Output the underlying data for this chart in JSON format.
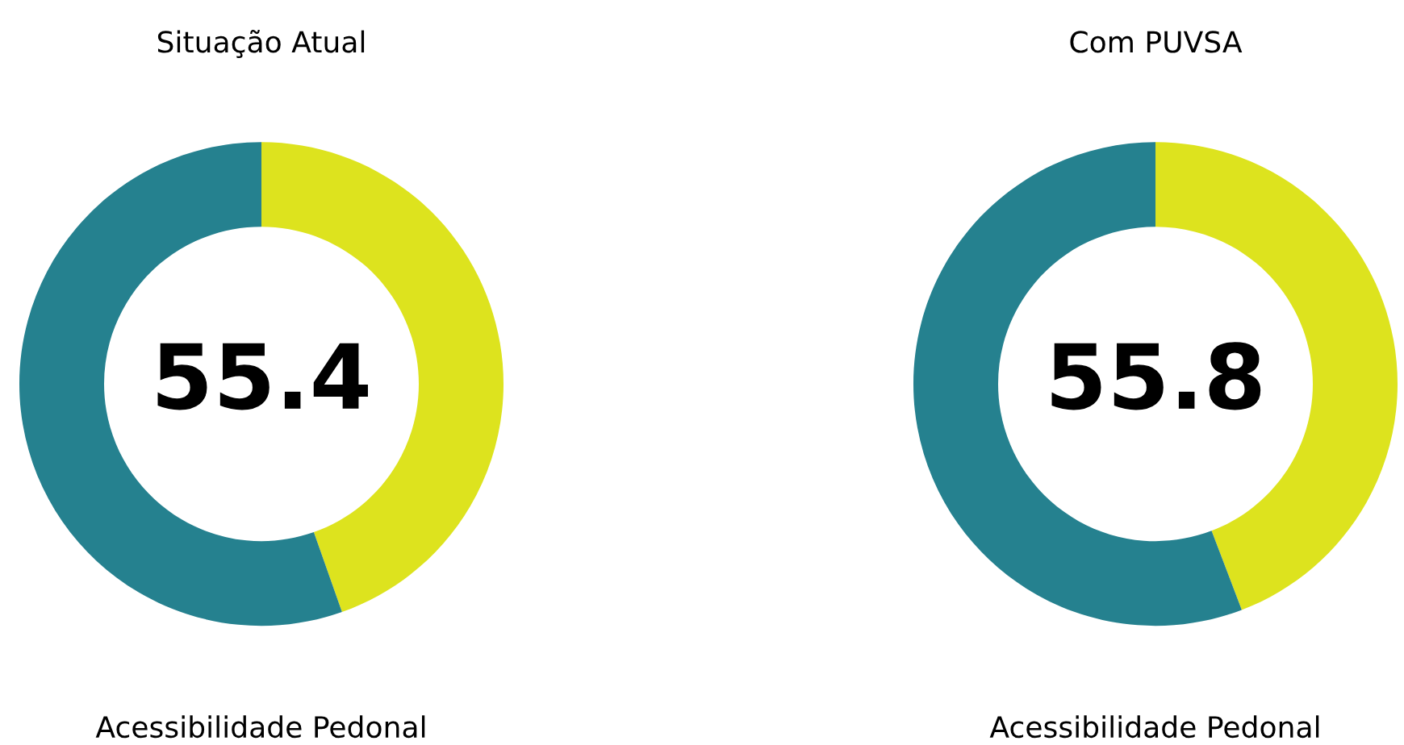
{
  "chart_data": [
    {
      "type": "donut",
      "title": "Situação Atual",
      "xlabel": "Acessibilidade Pedonal",
      "categories": [
        null,
        null
      ],
      "values": [
        44.6,
        55.4
      ],
      "colors": [
        "#dde31e",
        "#25818f"
      ],
      "annotations": [
        "55.4"
      ]
    },
    {
      "type": "donut",
      "title": "Com PUVSA",
      "xlabel": "Acessibilidade Pedonal",
      "categories": [
        null,
        null
      ],
      "values": [
        44.2,
        55.8
      ],
      "colors": [
        "#dde31e",
        "#25818f"
      ],
      "annotations": [
        "55.8"
      ]
    }
  ]
}
